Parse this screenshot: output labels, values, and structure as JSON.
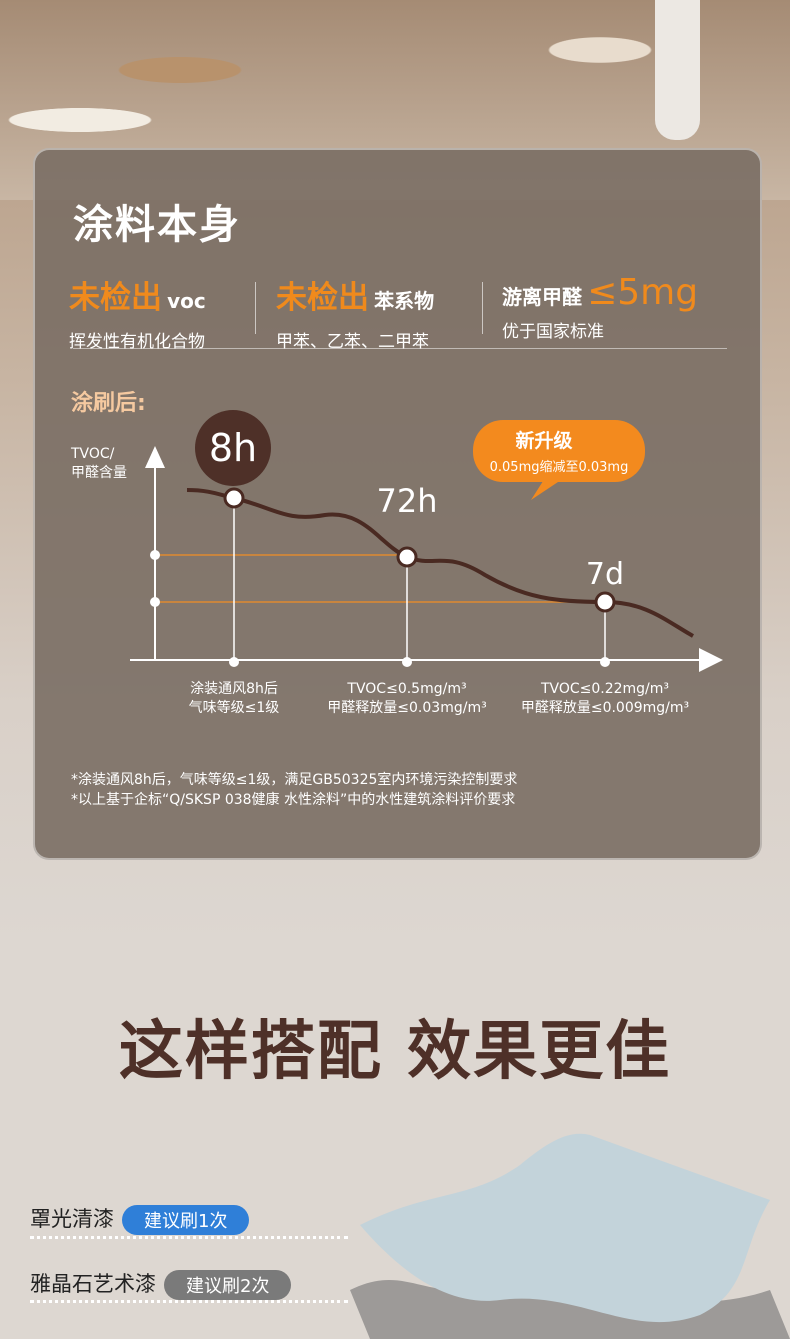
{
  "card": {
    "title": "涂料本身",
    "stats": [
      {
        "big": "未检出",
        "small": "voc",
        "sub": "挥发性有机化合物"
      },
      {
        "big": "未检出",
        "small": "苯系物",
        "sub": "甲苯、乙苯、二甲苯"
      },
      {
        "small": "游离甲醛",
        "big": "≤5mg",
        "sub": "优于国家标准"
      }
    ],
    "after_label": "涂刷后:",
    "y_axis_label_1": "TVOC/",
    "y_axis_label_2": "甲醛含量",
    "points": [
      {
        "time": "8h",
        "desc1": "涂装通风8h后",
        "desc2": "气味等级≤1级"
      },
      {
        "time": "72h",
        "desc1": "TVOC≤0.5mg/m³",
        "desc2": "甲醛释放量≤0.03mg/m³"
      },
      {
        "time": "7d",
        "desc1": "TVOC≤0.22mg/m³",
        "desc2": "甲醛释放量≤0.009mg/m³"
      }
    ],
    "upgrade_title": "新升级",
    "upgrade_desc": "0.05mg缩减至0.03mg",
    "notes": [
      "*涂装通风8h后，气味等级≤1级，满足GB50325室内环境污染控制要求",
      "*以上基于企标“Q/SKSP 038健康 水性涂料”中的水性建筑涂料评价要求"
    ]
  },
  "slogan": "这样搭配 效果更佳",
  "layers": [
    {
      "name": "罩光清漆",
      "tip": "建议刷1次",
      "color": "#2f7fd8"
    },
    {
      "name": "雅晶石艺术漆",
      "tip": "建议刷2次",
      "color": "#7a7a7a"
    }
  ],
  "colors": {
    "accent": "#f08a1c",
    "brown": "#4e3028"
  }
}
